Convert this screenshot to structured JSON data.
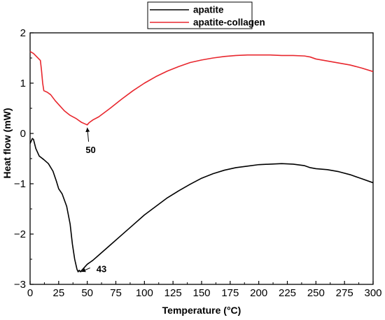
{
  "chart_data": {
    "type": "line",
    "title": "",
    "xlabel": "Temperature (°C)",
    "ylabel": "Heat flow (mW)",
    "xlim": [
      0,
      300
    ],
    "ylim": [
      -3,
      2
    ],
    "xticks": [
      0,
      25,
      50,
      75,
      100,
      125,
      150,
      175,
      200,
      225,
      250,
      275,
      300
    ],
    "yticks": [
      -3,
      -2,
      -1,
      0,
      1,
      2
    ],
    "ytick_labels": [
      "−3",
      "−2",
      "−1",
      "0",
      "1",
      "2"
    ],
    "grid": false,
    "legend_position": "top-center",
    "series": [
      {
        "name": "apatite",
        "color": "#000000",
        "x": [
          0,
          2,
          3,
          5,
          8,
          12,
          16,
          20,
          23,
          25,
          28,
          32,
          35,
          37,
          39,
          41,
          42,
          43,
          44,
          46,
          48,
          50,
          55,
          60,
          70,
          80,
          90,
          100,
          110,
          120,
          130,
          140,
          150,
          160,
          170,
          180,
          190,
          200,
          210,
          220,
          230,
          240,
          245,
          250,
          260,
          270,
          280,
          290,
          300
        ],
        "y": [
          -0.2,
          -0.1,
          -0.12,
          -0.3,
          -0.45,
          -0.52,
          -0.6,
          -0.75,
          -0.95,
          -1.1,
          -1.2,
          -1.45,
          -1.8,
          -2.2,
          -2.5,
          -2.7,
          -2.75,
          -2.72,
          -2.75,
          -2.7,
          -2.65,
          -2.6,
          -2.52,
          -2.42,
          -2.22,
          -2.02,
          -1.82,
          -1.62,
          -1.45,
          -1.28,
          -1.14,
          -1.01,
          -0.89,
          -0.8,
          -0.73,
          -0.68,
          -0.65,
          -0.62,
          -0.61,
          -0.6,
          -0.61,
          -0.64,
          -0.68,
          -0.7,
          -0.72,
          -0.76,
          -0.82,
          -0.9,
          -0.98
        ]
      },
      {
        "name": "apatite-collagen",
        "color": "#e8272e",
        "x": [
          0,
          3,
          6,
          9,
          10,
          11,
          12,
          15,
          18,
          22,
          26,
          30,
          35,
          40,
          45,
          48,
          50,
          51,
          52,
          55,
          60,
          70,
          80,
          90,
          100,
          110,
          120,
          130,
          140,
          150,
          160,
          170,
          180,
          190,
          200,
          210,
          220,
          230,
          240,
          245,
          250,
          260,
          270,
          280,
          290,
          300
        ],
        "y": [
          1.63,
          1.59,
          1.52,
          1.45,
          1.25,
          1.0,
          0.85,
          0.82,
          0.77,
          0.65,
          0.55,
          0.45,
          0.36,
          0.3,
          0.22,
          0.19,
          0.17,
          0.2,
          0.22,
          0.27,
          0.33,
          0.5,
          0.68,
          0.85,
          1.0,
          1.13,
          1.24,
          1.33,
          1.41,
          1.46,
          1.5,
          1.53,
          1.55,
          1.56,
          1.56,
          1.56,
          1.55,
          1.55,
          1.54,
          1.52,
          1.48,
          1.44,
          1.4,
          1.36,
          1.3,
          1.23
        ]
      }
    ],
    "annotations": [
      {
        "text": "50",
        "x": 50,
        "y": 0.17,
        "label_x": 53,
        "label_y": -0.33
      },
      {
        "text": "43",
        "x": 43,
        "y": -2.75,
        "label_x": 58,
        "label_y": -2.7
      }
    ]
  }
}
